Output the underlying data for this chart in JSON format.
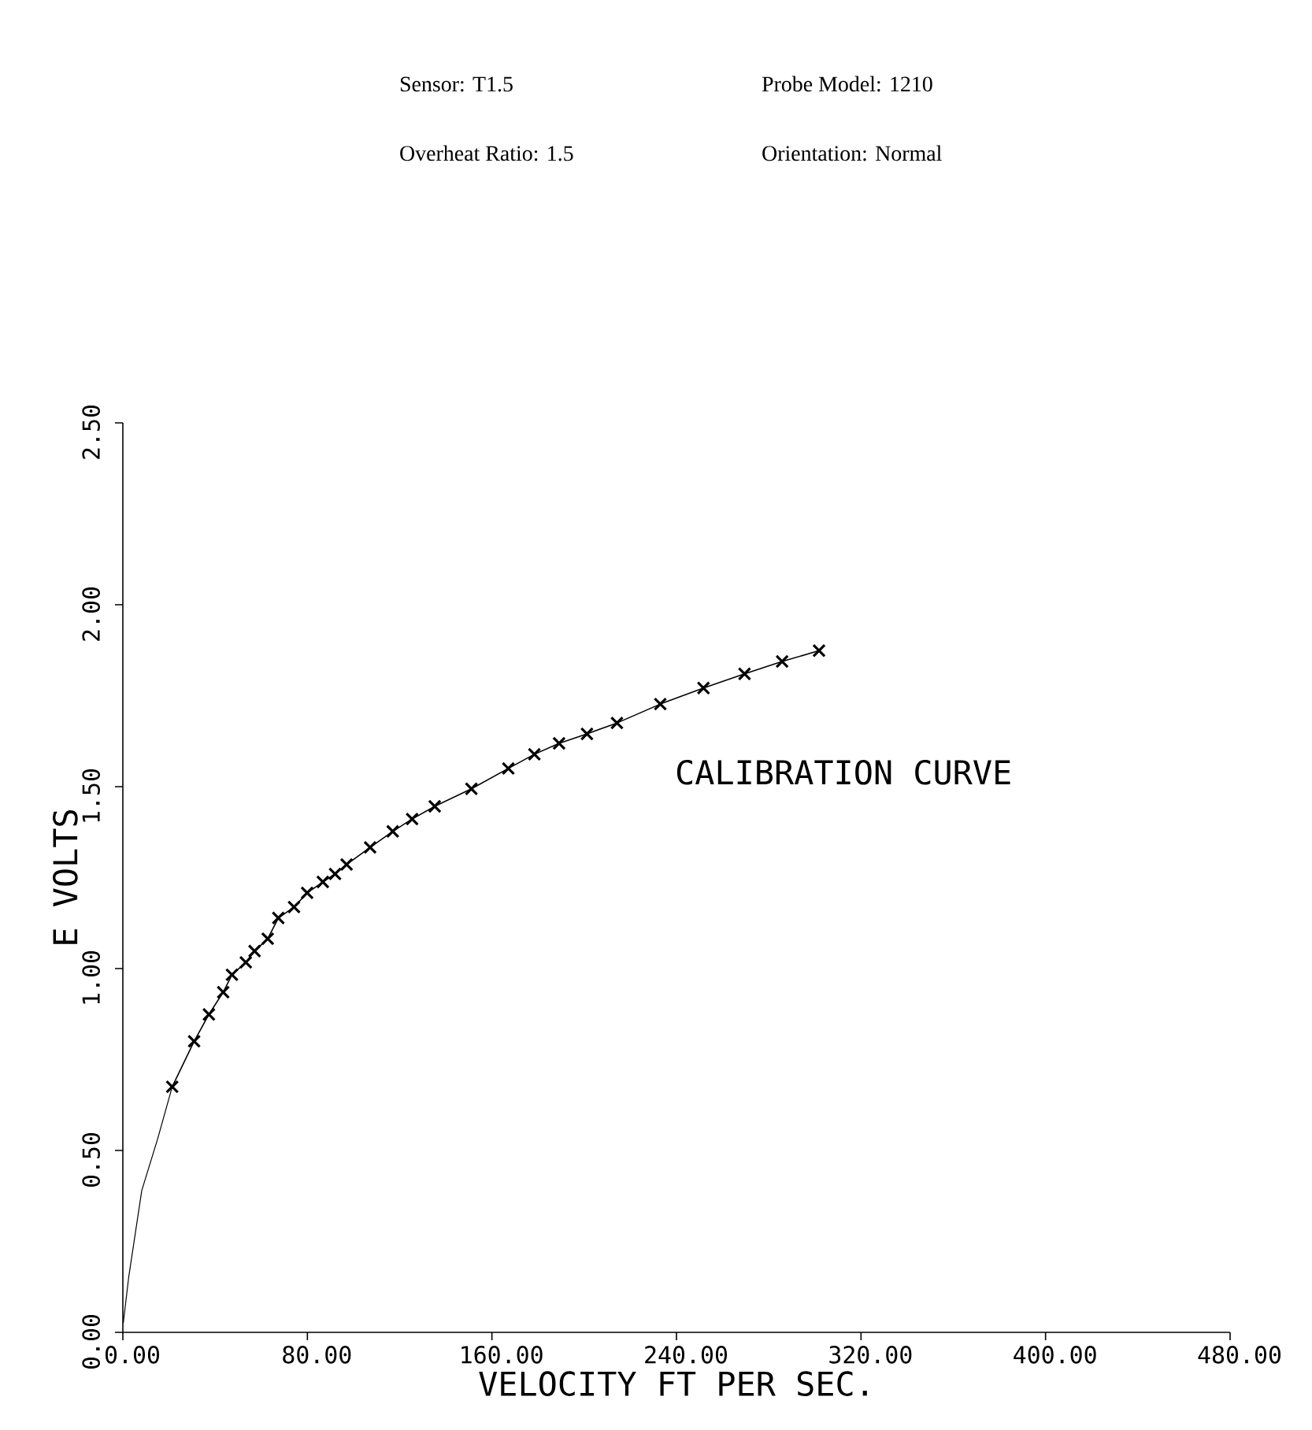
{
  "chart_data": {
    "type": "line",
    "xlabel": "VELOCITY FT PER SEC.",
    "ylabel": "E VOLTS",
    "annotations": [
      "Sensor:  T1.5",
      "Probe Model:  1210",
      "Overheat Ratio:  1.5",
      "Orientation:  Normal",
      "CALIBRATION CURVE"
    ],
    "xlim": [
      0,
      480
    ],
    "ylim": [
      0,
      2.5
    ],
    "xticks": [
      {
        "value": 0,
        "label": "0.00"
      },
      {
        "value": 80,
        "label": "80.00"
      },
      {
        "value": 160,
        "label": "160.00"
      },
      {
        "value": 240,
        "label": "240.00"
      },
      {
        "value": 320,
        "label": "320.00"
      },
      {
        "value": 400,
        "label": "400.00"
      },
      {
        "value": 480,
        "label": "480.00"
      }
    ],
    "yticks": [
      {
        "value": 0,
        "label": "0.00"
      },
      {
        "value": 0.5,
        "label": "0.50"
      },
      {
        "value": 1,
        "label": "1.00"
      },
      {
        "value": 1.5,
        "label": "1.50"
      },
      {
        "value": 2,
        "label": "2.00"
      },
      {
        "value": 2.5,
        "label": "2.50"
      }
    ],
    "grid": false,
    "series": [
      {
        "color": "#000000",
        "marker": "cross",
        "line_style": "solid",
        "x": [
          21.4,
          30.9,
          37.3,
          43.5,
          47.3,
          53.3,
          57.1,
          62.8,
          67.4,
          74.2,
          79.9,
          86.7,
          92.0,
          97.0,
          107.2,
          117.0,
          125.4,
          135.2,
          151.1,
          167.1,
          178.4,
          189.1,
          201.2,
          214.2,
          233.0,
          251.7,
          269.5,
          285.8,
          301.8
        ],
        "values": [
          0.675,
          0.8,
          0.874,
          0.935,
          0.983,
          1.017,
          1.048,
          1.082,
          1.139,
          1.169,
          1.208,
          1.238,
          1.26,
          1.286,
          1.333,
          1.377,
          1.411,
          1.446,
          1.494,
          1.55,
          1.589,
          1.619,
          1.645,
          1.675,
          1.727,
          1.771,
          1.81,
          1.844,
          1.874
        ]
      },
      {
        "color": "#000000",
        "marker": "none",
        "line_style": "solid",
        "x": [
          0.2,
          2.5,
          8.2,
          15.0,
          21.4
        ],
        "values": [
          0.026,
          0.15,
          0.39,
          0.53,
          0.675
        ]
      }
    ]
  }
}
